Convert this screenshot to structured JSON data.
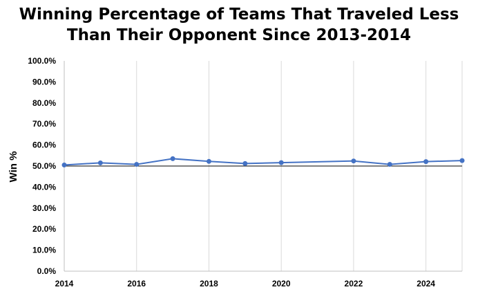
{
  "chart_data": {
    "type": "line",
    "title_lines": [
      "Winning Percentage of Teams That Traveled Less",
      "Than Their Opponent Since 2013-2014"
    ],
    "xlabel": "",
    "ylabel": "Win  %",
    "xlim": [
      2014,
      2025
    ],
    "ylim": [
      0,
      100
    ],
    "x_ticks": [
      2014,
      2016,
      2018,
      2020,
      2022,
      2024
    ],
    "y_ticks": [
      0,
      10,
      20,
      30,
      40,
      50,
      60,
      70,
      80,
      90,
      100
    ],
    "y_tick_format": "percent_1dp",
    "reference_line_y": 50,
    "grid": "vertical",
    "line_color": "#4472c4",
    "series": [
      {
        "x": [
          2014,
          2015,
          2016,
          2017,
          2018,
          2019,
          2020,
          2022,
          2023,
          2024,
          2025
        ],
        "y": [
          50.5,
          51.5,
          50.8,
          53.5,
          52.2,
          51.2,
          51.6,
          52.4,
          50.8,
          52.1,
          52.6
        ]
      }
    ]
  }
}
